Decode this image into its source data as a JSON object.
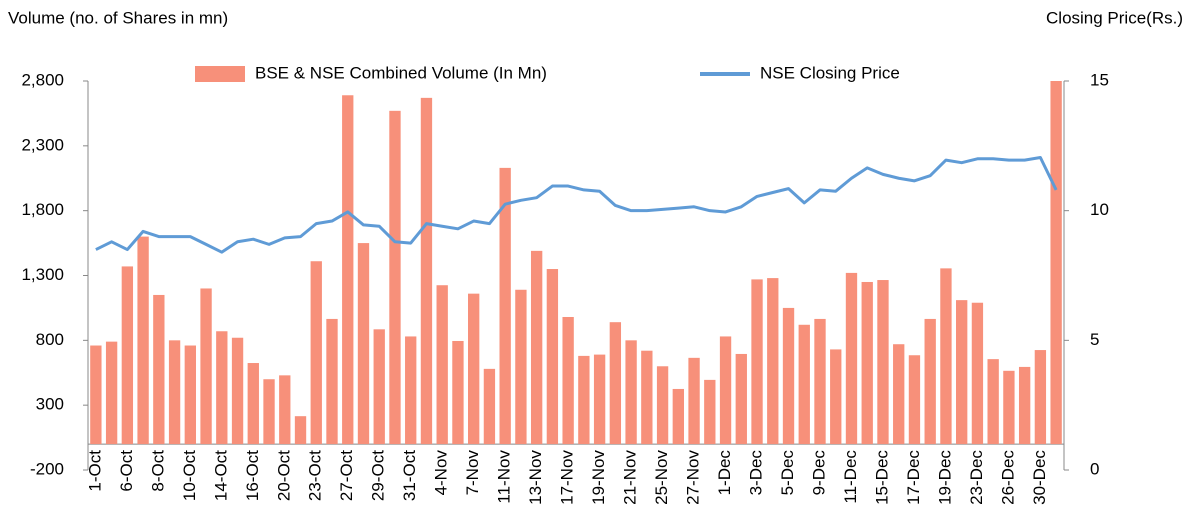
{
  "chart_data": {
    "type": "bar_line",
    "y_axis_label": "Volume (no. of Shares in mn)",
    "y2_axis_label": "Closing Price(Rs.)",
    "categories": [
      "1-Oct",
      null,
      "6-Oct",
      null,
      "8-Oct",
      null,
      "10-Oct",
      null,
      "14-Oct",
      null,
      "16-Oct",
      null,
      "20-Oct",
      null,
      "23-Oct",
      null,
      "27-Oct",
      null,
      "29-Oct",
      null,
      "31-Oct",
      null,
      "4-Nov",
      null,
      "7-Nov",
      null,
      "11-Nov",
      null,
      "13-Nov",
      null,
      "17-Nov",
      null,
      "19-Nov",
      null,
      "21-Nov",
      null,
      "25-Nov",
      null,
      "27-Nov",
      null,
      "1-Dec",
      null,
      "3-Dec",
      null,
      "5-Dec",
      null,
      "9-Dec",
      null,
      "11-Dec",
      null,
      "15-Dec",
      null,
      "17-Dec",
      null,
      "19-Dec",
      null,
      "23-Dec",
      null,
      "26-Dec",
      null,
      "30-Dec",
      null
    ],
    "series": [
      {
        "name": "BSE & NSE Combined Volume (In Mn)",
        "kind": "bar",
        "color": "#f7907a",
        "values": [
          760,
          790,
          1370,
          1600,
          1150,
          800,
          760,
          1200,
          870,
          820,
          625,
          500,
          530,
          215,
          1410,
          965,
          2690,
          1550,
          885,
          2570,
          830,
          2670,
          1225,
          795,
          1160,
          580,
          2130,
          1190,
          1490,
          1350,
          980,
          680,
          690,
          940,
          800,
          720,
          600,
          425,
          665,
          495,
          830,
          695,
          1270,
          1280,
          1050,
          920,
          965,
          730,
          1320,
          1250,
          1265,
          770,
          685,
          965,
          1355,
          1110,
          1090,
          655,
          565,
          595,
          725,
          2800
        ]
      },
      {
        "name": "NSE Closing Price",
        "kind": "line",
        "axis": "y2",
        "color": "#5f9bd6",
        "values": [
          8.5,
          8.8,
          8.5,
          9.2,
          9.0,
          9.0,
          9.0,
          8.7,
          8.4,
          8.8,
          8.9,
          8.7,
          8.95,
          9.0,
          9.5,
          9.6,
          9.95,
          9.45,
          9.4,
          8.8,
          8.75,
          9.5,
          9.4,
          9.3,
          9.6,
          9.5,
          10.25,
          10.4,
          10.5,
          10.95,
          10.95,
          10.8,
          10.75,
          10.2,
          10.0,
          10.0,
          10.05,
          10.1,
          10.15,
          10.0,
          9.95,
          10.15,
          10.55,
          10.7,
          10.85,
          10.3,
          10.8,
          10.75,
          11.25,
          11.65,
          11.4,
          11.25,
          11.15,
          11.35,
          11.95,
          11.85,
          12.0,
          12.0,
          11.95,
          11.95,
          12.05,
          10.8
        ]
      }
    ],
    "ylim": [
      -200,
      2800
    ],
    "yticks": [
      -200,
      300,
      800,
      {
        "value": 1300,
        "label": "1,300"
      },
      {
        "value": 1800,
        "label": "1,800"
      },
      {
        "value": 2300,
        "label": "2,300"
      },
      {
        "value": 2800,
        "label": "2,800"
      }
    ],
    "y2lim": [
      0,
      15
    ],
    "y2ticks": [
      0,
      5,
      10,
      15
    ],
    "legend": "top",
    "grid": false
  }
}
